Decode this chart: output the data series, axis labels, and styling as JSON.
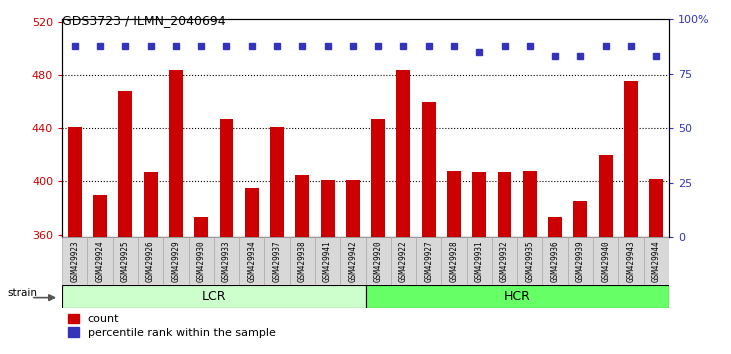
{
  "title": "GDS3723 / ILMN_2040694",
  "samples": [
    "GSM429923",
    "GSM429924",
    "GSM429925",
    "GSM429926",
    "GSM429929",
    "GSM429930",
    "GSM429933",
    "GSM429934",
    "GSM429937",
    "GSM429938",
    "GSM429941",
    "GSM429942",
    "GSM429920",
    "GSM429922",
    "GSM429927",
    "GSM429928",
    "GSM429931",
    "GSM429932",
    "GSM429935",
    "GSM429936",
    "GSM429939",
    "GSM429940",
    "GSM429943",
    "GSM429944"
  ],
  "values": [
    441,
    390,
    468,
    407,
    484,
    373,
    447,
    395,
    441,
    405,
    401,
    401,
    447,
    484,
    460,
    408,
    407,
    407,
    408,
    373,
    385,
    420,
    476,
    402
  ],
  "percentile_values": [
    88,
    88,
    88,
    88,
    88,
    88,
    88,
    88,
    88,
    88,
    88,
    88,
    88,
    88,
    88,
    88,
    85,
    88,
    88,
    83,
    83,
    88,
    88,
    83
  ],
  "groups": [
    {
      "label": "LCR",
      "start": 0,
      "end": 12,
      "color": "#ccffcc"
    },
    {
      "label": "HCR",
      "start": 12,
      "end": 24,
      "color": "#66ff66"
    }
  ],
  "ymin": 358,
  "ymax": 522,
  "yticks": [
    360,
    400,
    440,
    480,
    520
  ],
  "y2min": 0,
  "y2max": 100,
  "yticks2": [
    0,
    25,
    50,
    75,
    100
  ],
  "bar_color": "#cc0000",
  "dot_color": "#3333bb",
  "bar_width": 0.55,
  "cell_bg": "#d8d8d8",
  "plot_bg": "#ffffff",
  "axis_color_left": "#cc0000",
  "axis_color_right": "#3333bb",
  "strain_label": "strain",
  "legend_count": "count",
  "legend_pct": "percentile rank within the sample"
}
